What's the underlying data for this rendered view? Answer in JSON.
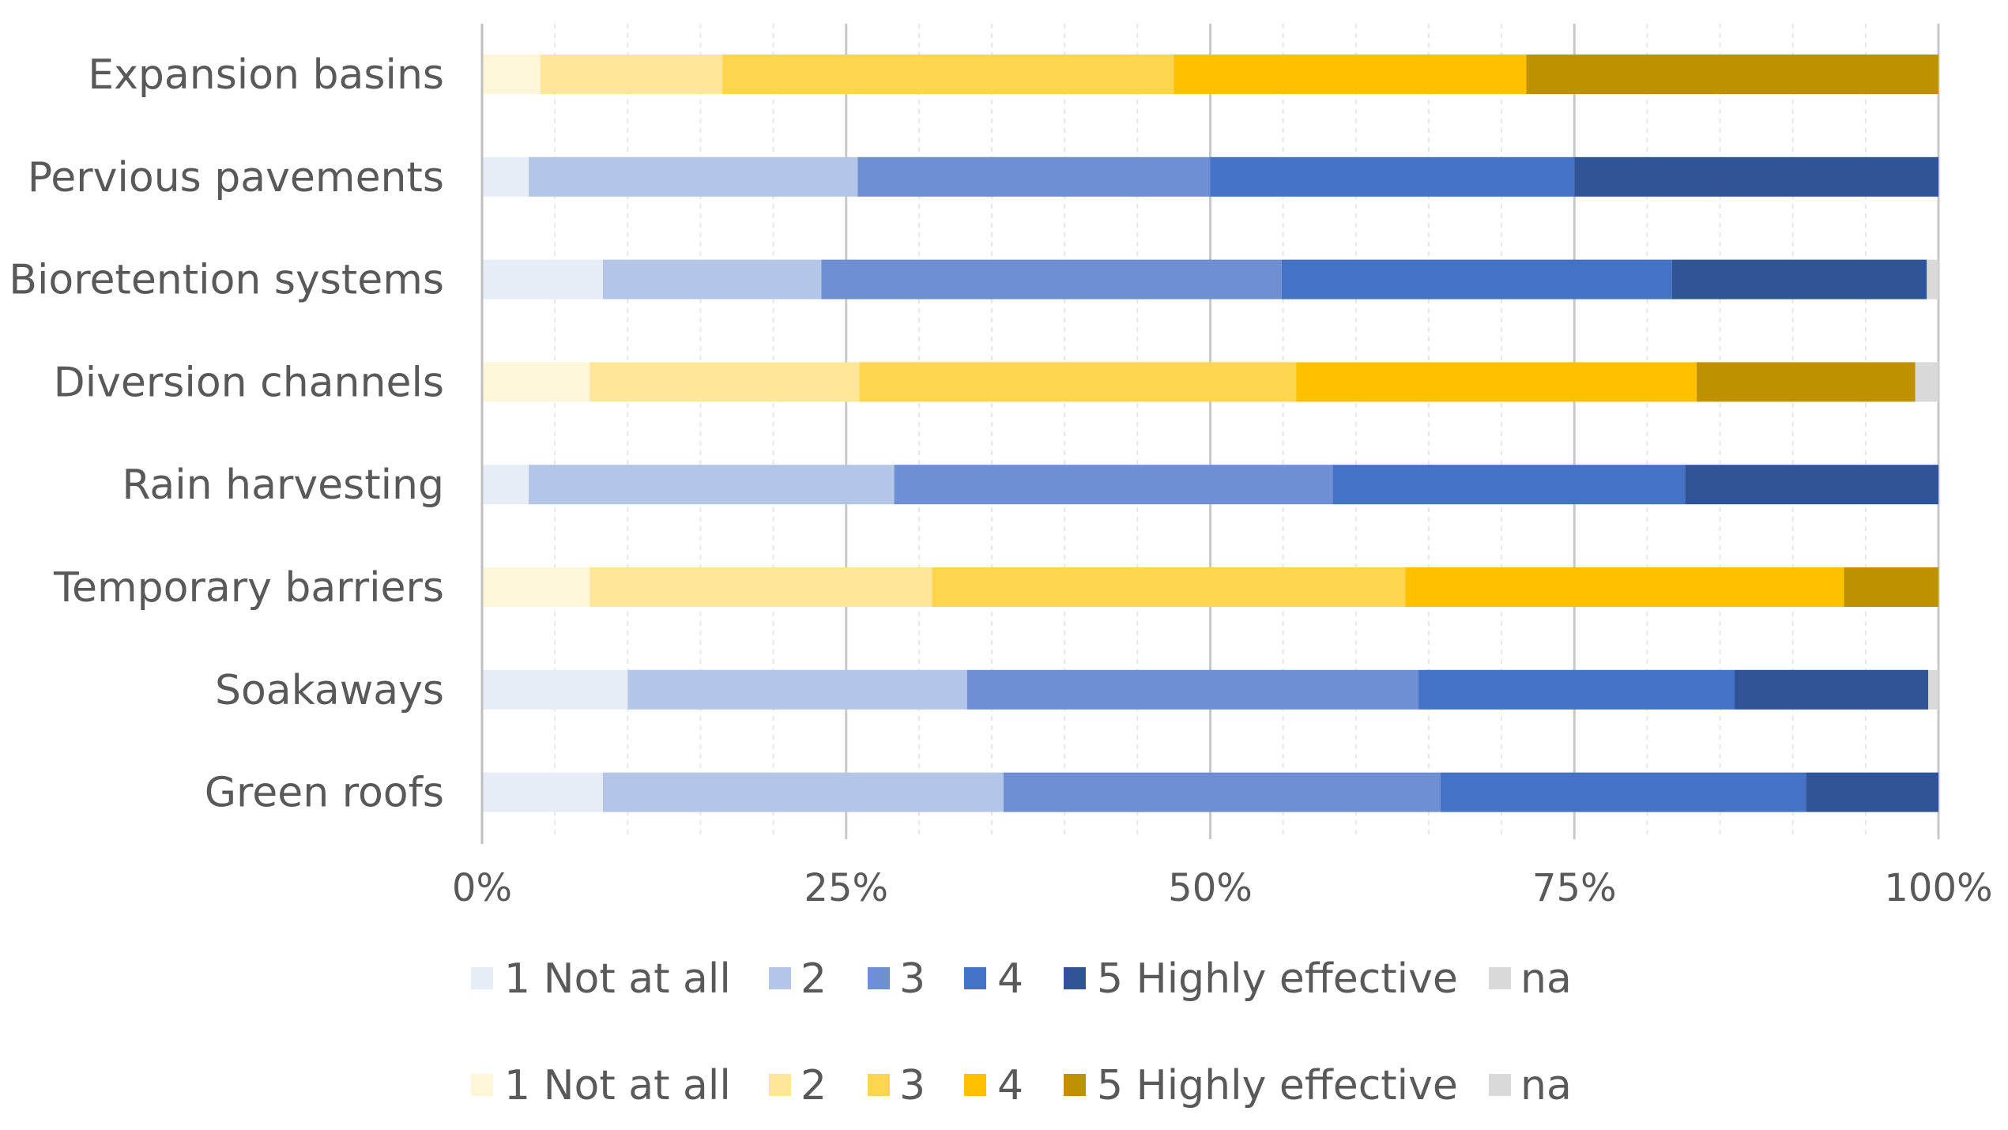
{
  "chart_data": {
    "type": "stacked-bar-horizontal-percent",
    "title": "",
    "xlabel": "",
    "ylabel": "",
    "xlim": [
      0,
      100
    ],
    "x_ticks": [
      "0%",
      "25%",
      "50%",
      "75%",
      "100%"
    ],
    "grid": true,
    "legend_position": "bottom",
    "categories": [
      "Expansion basins",
      "Pervious pavements",
      "Bioretention systems",
      "Diversion channels",
      "Rain harvesting",
      "Temporary barriers",
      "Soakaways",
      "Green roofs"
    ],
    "bar_palette": [
      "yellow",
      "blue",
      "blue",
      "yellow",
      "blue",
      "yellow",
      "blue",
      "blue"
    ],
    "series": [
      {
        "name": "1 Not at all",
        "values": [
          4,
          3.2,
          8.3,
          7.4,
          3.2,
          7.4,
          10,
          8.3
        ]
      },
      {
        "name": "2",
        "values": [
          12.5,
          22.6,
          15,
          18.5,
          25.1,
          23.5,
          23.3,
          27.5
        ]
      },
      {
        "name": "3",
        "values": [
          31,
          24.2,
          31.6,
          30,
          30.1,
          32.5,
          31,
          30
        ]
      },
      {
        "name": "4",
        "values": [
          24.2,
          25,
          26.8,
          27.5,
          24.2,
          30.1,
          21.7,
          25.1
        ]
      },
      {
        "name": "5 Highly effective",
        "values": [
          28.3,
          25,
          17.5,
          15,
          17.4,
          6.5,
          13.3,
          9.1
        ]
      },
      {
        "name": "na",
        "values": [
          0,
          0,
          0.8,
          1.6,
          0,
          0,
          0.7,
          0
        ]
      }
    ],
    "legends": [
      {
        "entries": [
          {
            "label": "1 Not at all",
            "color": "#e7edf7"
          },
          {
            "label": "2",
            "color": "#b4c6e7"
          },
          {
            "label": "3",
            "color": "#6f8fd4"
          },
          {
            "label": "4",
            "color": "#4472c4"
          },
          {
            "label": "5 Highly effective",
            "color": "#2f5597"
          },
          {
            "label": "na",
            "color": "#d9d9d9"
          }
        ]
      },
      {
        "entries": [
          {
            "label": "1 Not at all",
            "color": "#fff5d9"
          },
          {
            "label": "2",
            "color": "#ffe699"
          },
          {
            "label": "3",
            "color": "#ffd54f"
          },
          {
            "label": "4",
            "color": "#ffc000"
          },
          {
            "label": "5 Highly effective",
            "color": "#bf9000"
          },
          {
            "label": "na",
            "color": "#d9d9d9"
          }
        ]
      }
    ],
    "palettes": {
      "blue": [
        "#e7edf7",
        "#b4c6e7",
        "#6f8fd4",
        "#4472c4",
        "#2f5597",
        "#d9d9d9"
      ],
      "yellow": [
        "#fff5d9",
        "#ffe699",
        "#ffd54f",
        "#ffc000",
        "#bf9000",
        "#d9d9d9"
      ]
    },
    "grid_color": "#d9d9d9",
    "axis_color": "#bfbfbf"
  }
}
